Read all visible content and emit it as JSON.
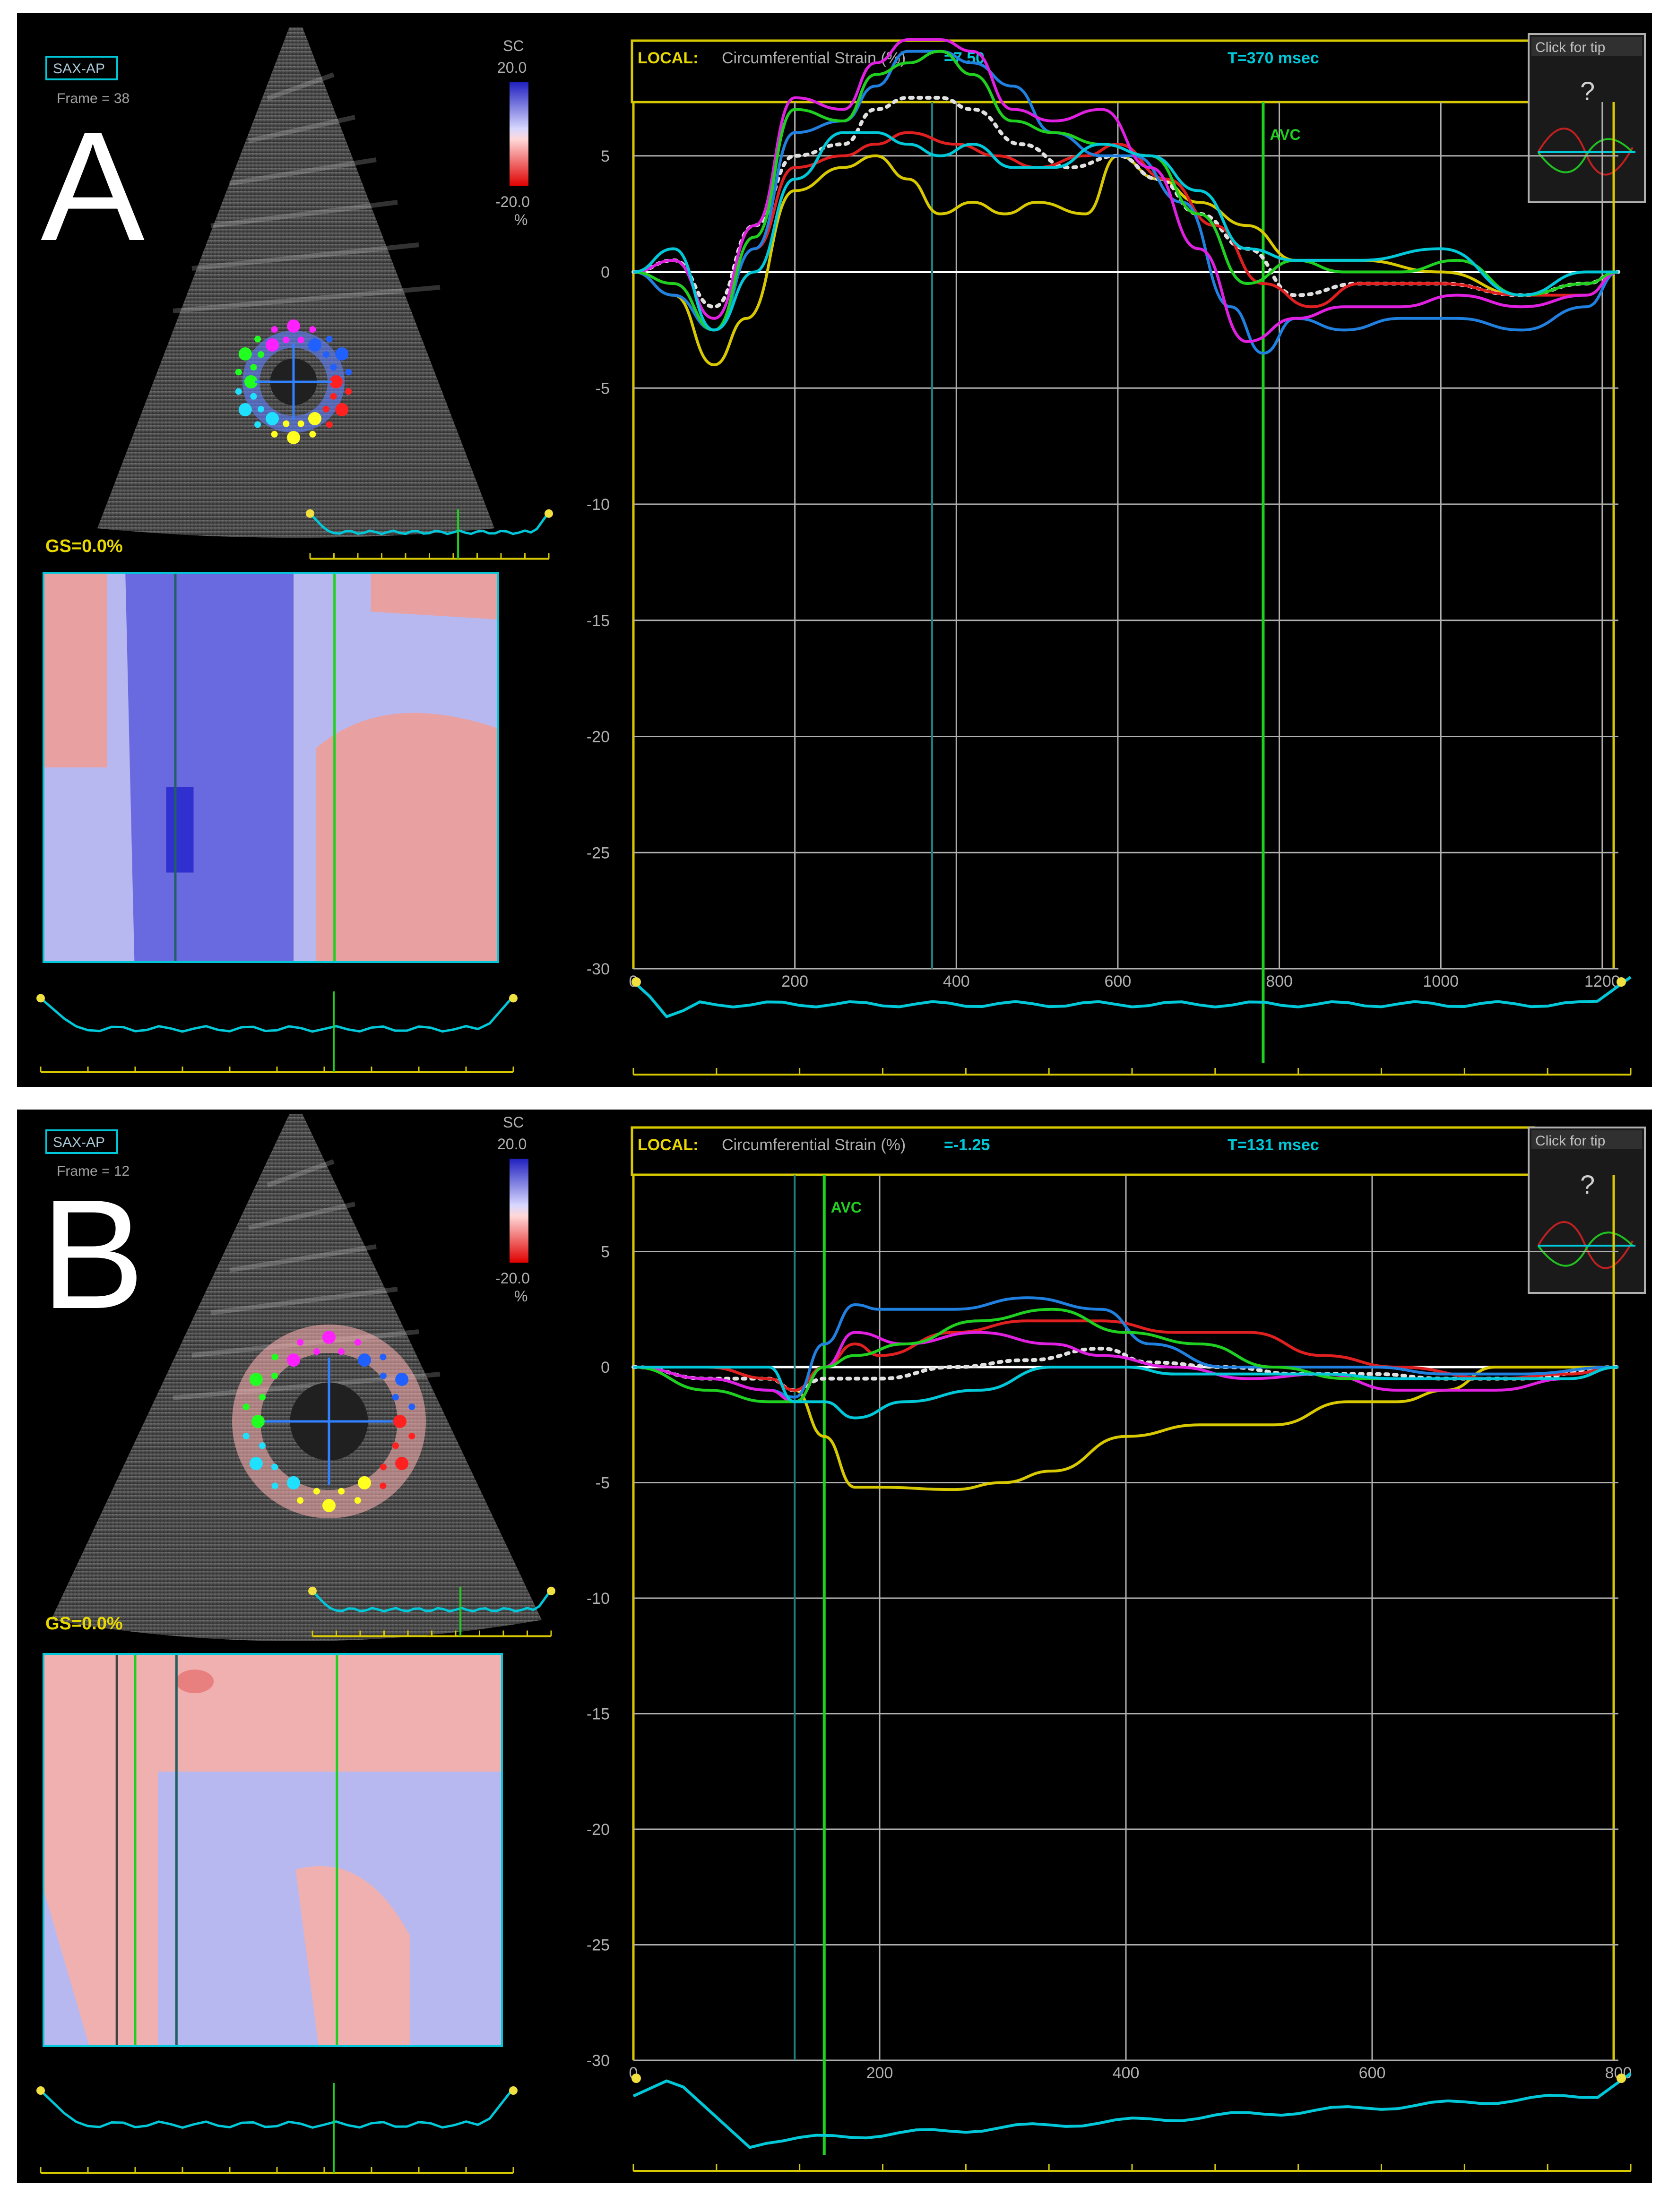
{
  "panels": [
    {
      "letter": "A",
      "view": "SAX-AP",
      "frame": "Frame = 38",
      "scale": {
        "label": "SC",
        "max": "20.0",
        "min": "-20.0",
        "unit": "%"
      },
      "gs": "GS=0.0%",
      "header": {
        "local": "LOCAL:",
        "title": "Circumferential Strain (%)",
        "value": "=7.50",
        "time": "T=370 msec"
      },
      "help": {
        "label": "Click for tip",
        "icon": "?"
      },
      "avc": "AVC",
      "colors": {
        "yellow": "#d8c800",
        "cyan": "#00c8d8",
        "green": "#20d020"
      }
    },
    {
      "letter": "B",
      "view": "SAX-AP",
      "frame": "Frame = 12",
      "scale": {
        "label": "SC",
        "max": "20.0",
        "min": "-20.0",
        "unit": "%"
      },
      "gs": "GS=0.0%",
      "header": {
        "local": "LOCAL:",
        "title": "Circumferential Strain (%)",
        "value": "=-1.25",
        "time": "T=131 msec"
      },
      "help": {
        "label": "Click for tip",
        "icon": "?"
      },
      "avc": "AVC",
      "colors": {
        "yellow": "#d8c800",
        "cyan": "#00c8d8",
        "green": "#20d020"
      }
    }
  ],
  "chart_data": [
    {
      "type": "line",
      "title": "Circumferential Strain (%)",
      "ylim": [
        -30,
        10
      ],
      "xlim": [
        0,
        1220
      ],
      "yticks": [
        5,
        0,
        -5,
        -10,
        -15,
        -20,
        -25,
        -30
      ],
      "xticks": [
        0,
        200,
        400,
        600,
        800,
        1000,
        1200
      ],
      "grid": true,
      "markers": [
        {
          "label": "AVC",
          "x": 780
        },
        {
          "label": "",
          "x": 370
        }
      ],
      "series": [
        {
          "color": "#d8c800",
          "x": [
            0,
            50,
            100,
            140,
            200,
            260,
            300,
            340,
            380,
            420,
            460,
            500,
            560,
            600,
            650,
            700,
            760,
            820,
            900,
            1000,
            1100,
            1180,
            1220
          ],
          "y": [
            0,
            -1,
            -4,
            -2,
            3.5,
            4.5,
            5,
            4,
            2.5,
            3,
            2.5,
            3,
            2.5,
            5,
            4,
            3,
            2,
            0.5,
            0.5,
            0,
            -1,
            -0.5,
            0
          ]
        },
        {
          "color": "#e0e0e0",
          "dash": true,
          "x": [
            0,
            50,
            100,
            150,
            200,
            260,
            300,
            340,
            380,
            420,
            480,
            540,
            600,
            650,
            700,
            760,
            820,
            900,
            1000,
            1100,
            1180,
            1220
          ],
          "y": [
            0,
            0.5,
            -1.5,
            2,
            5,
            5.5,
            7,
            7.5,
            7.5,
            7,
            5.5,
            4.5,
            5,
            4,
            2.5,
            1,
            -1,
            -0.5,
            -0.5,
            -1,
            -0.5,
            0
          ]
        },
        {
          "color": "#e02020",
          "x": [
            0,
            50,
            100,
            150,
            200,
            260,
            300,
            340,
            400,
            450,
            500,
            560,
            600,
            660,
            720,
            780,
            840,
            900,
            1000,
            1100,
            1180,
            1220
          ],
          "y": [
            0,
            -0.5,
            -2.5,
            1,
            4.5,
            5,
            5.5,
            6,
            5.5,
            5,
            4.5,
            5,
            5.5,
            4,
            2,
            -0.5,
            -1.5,
            -0.5,
            -0.5,
            -1,
            -1,
            0
          ]
        },
        {
          "color": "#2080e0",
          "x": [
            0,
            50,
            100,
            150,
            200,
            260,
            300,
            340,
            380,
            420,
            470,
            520,
            580,
            620,
            680,
            740,
            780,
            820,
            880,
            950,
            1020,
            1100,
            1180,
            1220
          ],
          "y": [
            0,
            -1,
            -2.5,
            1,
            6,
            6.5,
            8,
            9.5,
            9.5,
            9,
            8,
            6,
            5,
            5,
            3,
            -1.5,
            -3.5,
            -2,
            -2.5,
            -2,
            -2,
            -2.5,
            -1.5,
            0
          ]
        },
        {
          "color": "#e020e0",
          "x": [
            0,
            50,
            100,
            150,
            200,
            260,
            300,
            340,
            380,
            420,
            470,
            520,
            580,
            640,
            700,
            760,
            820,
            880,
            950,
            1020,
            1100,
            1180,
            1220
          ],
          "y": [
            0,
            0.5,
            -2,
            2,
            7.5,
            7,
            9,
            10,
            10,
            9.5,
            7,
            6.5,
            7,
            4.5,
            1,
            -3,
            -2,
            -1.5,
            -1.5,
            -1,
            -1.5,
            -1,
            0
          ]
        },
        {
          "color": "#20d020",
          "x": [
            0,
            50,
            100,
            150,
            200,
            260,
            300,
            340,
            380,
            420,
            470,
            520,
            580,
            640,
            700,
            760,
            820,
            880,
            950,
            1020,
            1100,
            1180,
            1220
          ],
          "y": [
            0,
            -0.5,
            -2.5,
            1.5,
            7,
            6.5,
            8.5,
            9,
            9.5,
            8.5,
            6.5,
            6,
            5.5,
            5,
            2.5,
            -0.5,
            0.5,
            0,
            0,
            0.5,
            -1,
            -0.5,
            0
          ]
        },
        {
          "color": "#00c8d8",
          "x": [
            0,
            50,
            100,
            150,
            200,
            260,
            300,
            340,
            380,
            420,
            470,
            520,
            580,
            640,
            700,
            760,
            820,
            900,
            1000,
            1100,
            1180,
            1220
          ],
          "y": [
            0,
            1,
            -2.5,
            0,
            4,
            6,
            6,
            5.5,
            5,
            5.5,
            4.5,
            4.5,
            5.5,
            5,
            3.5,
            1,
            0.5,
            0.5,
            1,
            -1,
            0,
            0
          ]
        }
      ]
    },
    {
      "type": "line",
      "title": "Circumferential Strain (%)",
      "ylim": [
        -30,
        10
      ],
      "xlim": [
        0,
        800
      ],
      "yticks": [
        5,
        0,
        -5,
        -10,
        -15,
        -20,
        -25,
        -30
      ],
      "xticks": [
        0,
        200,
        400,
        600,
        800
      ],
      "grid": true,
      "markers": [
        {
          "label": "AVC",
          "x": 155
        },
        {
          "label": "",
          "x": 131
        }
      ],
      "series": [
        {
          "color": "#d8c800",
          "x": [
            0,
            60,
            110,
            131,
            155,
            180,
            200,
            260,
            300,
            340,
            400,
            460,
            520,
            580,
            620,
            660,
            700,
            760,
            800
          ],
          "y": [
            0,
            0,
            -0.5,
            -1,
            -3,
            -5.2,
            -5.2,
            -5.3,
            -5,
            -4.5,
            -3,
            -2.5,
            -2.5,
            -1.5,
            -1.5,
            -1,
            0,
            0,
            0
          ],
          "dash": false
        },
        {
          "color": "#e0e0e0",
          "dash": true,
          "x": [
            0,
            60,
            110,
            131,
            155,
            200,
            260,
            320,
            380,
            420,
            480,
            540,
            600,
            660,
            720,
            800
          ],
          "y": [
            0,
            -0.5,
            -0.5,
            -1,
            -0.5,
            -0.5,
            0,
            0.3,
            0.8,
            0.2,
            0,
            -0.3,
            -0.3,
            -0.5,
            -0.5,
            0
          ]
        },
        {
          "color": "#e02020",
          "x": [
            0,
            60,
            110,
            131,
            155,
            180,
            200,
            260,
            320,
            380,
            440,
            500,
            560,
            620,
            700,
            760,
            800
          ],
          "y": [
            0,
            0,
            -0.5,
            -1,
            0,
            1,
            0.5,
            1.5,
            2,
            2,
            1.5,
            1.5,
            0.5,
            0,
            -0.5,
            -0.3,
            0
          ]
        },
        {
          "color": "#2080e0",
          "x": [
            0,
            60,
            110,
            131,
            155,
            180,
            200,
            260,
            320,
            380,
            420,
            480,
            540,
            600,
            660,
            720,
            800
          ],
          "y": [
            0,
            -0.5,
            -1,
            -1.3,
            1,
            2.7,
            2.5,
            2.5,
            3,
            2.5,
            1,
            0,
            0,
            0,
            -0.3,
            -0.3,
            0
          ]
        },
        {
          "color": "#e020e0",
          "x": [
            0,
            60,
            110,
            131,
            155,
            180,
            220,
            280,
            340,
            380,
            440,
            500,
            560,
            620,
            700,
            760,
            800
          ],
          "y": [
            0,
            -0.5,
            -1,
            -1.5,
            0,
            1.5,
            1,
            1.5,
            1,
            0.5,
            0,
            -0.5,
            -0.3,
            -1,
            -1,
            -0.5,
            0
          ]
        },
        {
          "color": "#20d020",
          "x": [
            0,
            60,
            110,
            131,
            155,
            180,
            220,
            280,
            340,
            400,
            460,
            520,
            580,
            640,
            700,
            760,
            800
          ],
          "y": [
            0,
            -1,
            -1.5,
            -1.5,
            0,
            0.5,
            1,
            2,
            2.5,
            1.5,
            1,
            0,
            -0.5,
            -0.5,
            -0.5,
            -0.5,
            0
          ]
        },
        {
          "color": "#00c8d8",
          "x": [
            0,
            60,
            110,
            131,
            155,
            180,
            220,
            280,
            340,
            400,
            440,
            500,
            560,
            620,
            700,
            760,
            800
          ],
          "y": [
            0,
            0,
            0,
            -1.5,
            -1.5,
            -2.2,
            -1.5,
            -1,
            0,
            0,
            -0.3,
            -0.3,
            -0.3,
            -0.5,
            -0.5,
            -0.5,
            0
          ]
        }
      ]
    }
  ]
}
